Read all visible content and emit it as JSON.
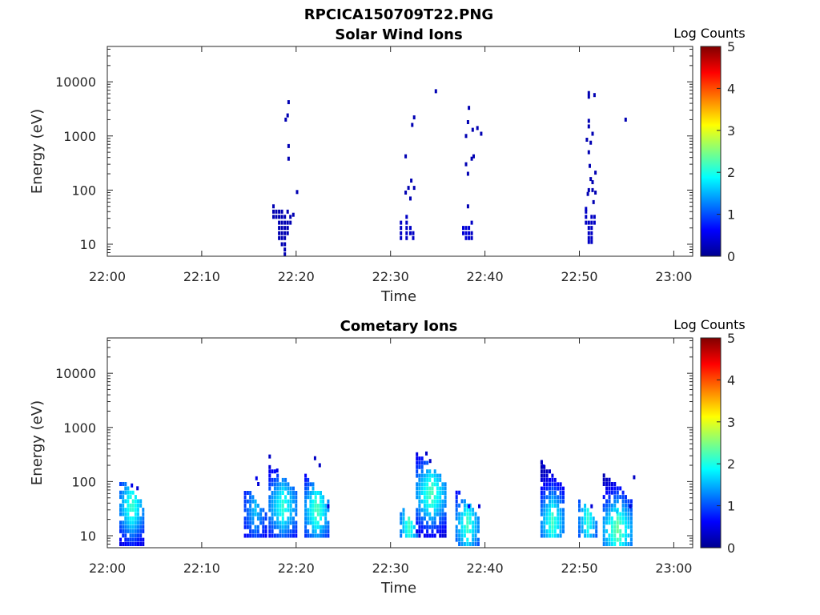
{
  "figure": {
    "title": "RPCICA150709T22.PNG"
  },
  "colormap": [
    "#00008f",
    "#0000ff",
    "#0080ff",
    "#00ffff",
    "#80ff80",
    "#ffff00",
    "#ff8000",
    "#ff0000",
    "#800000"
  ],
  "chart_data": [
    {
      "type": "heatmap",
      "title": "Solar Wind Ions",
      "xlabel": "Time",
      "ylabel": "Energy (eV)",
      "x_ticks": [
        "22:00",
        "22:10",
        "22:20",
        "22:30",
        "22:40",
        "22:50",
        "23:00"
      ],
      "x_tick_minutes": [
        0,
        10,
        20,
        30,
        40,
        50,
        60
      ],
      "xlim_minutes": [
        0,
        62
      ],
      "y_scale": "log",
      "ylim": [
        6,
        45000
      ],
      "y_ticks": [
        "10",
        "100",
        "1000",
        "10000"
      ],
      "y_tick_values": [
        10,
        100,
        1000,
        10000
      ],
      "colorbar": {
        "label": "Log Counts",
        "range": [
          0,
          5
        ],
        "ticks": [
          "0",
          "1",
          "2",
          "3",
          "4",
          "5"
        ]
      },
      "points": [
        [
          17.6,
          50,
          0.2
        ],
        [
          17.6,
          40,
          0.2
        ],
        [
          17.6,
          32,
          0.2
        ],
        [
          17.9,
          40,
          0.2
        ],
        [
          17.9,
          32,
          0.2
        ],
        [
          18.2,
          40,
          0.2
        ],
        [
          18.2,
          32,
          0.2
        ],
        [
          18.2,
          25,
          0.2
        ],
        [
          18.2,
          20,
          0.2
        ],
        [
          18.2,
          16,
          0.2
        ],
        [
          18.2,
          13,
          0.2
        ],
        [
          18.5,
          40,
          0.2
        ],
        [
          18.5,
          32,
          0.2
        ],
        [
          18.5,
          25,
          0.2
        ],
        [
          18.5,
          20,
          0.2
        ],
        [
          18.5,
          16,
          0.2
        ],
        [
          18.5,
          13,
          0.2
        ],
        [
          18.5,
          10,
          0.2
        ],
        [
          18.8,
          32,
          0.2
        ],
        [
          18.8,
          25,
          0.2
        ],
        [
          18.8,
          20,
          0.2
        ],
        [
          18.8,
          16,
          0.2
        ],
        [
          18.8,
          13,
          0.2
        ],
        [
          18.8,
          10,
          0.2
        ],
        [
          18.8,
          8,
          0.2
        ],
        [
          18.8,
          6.5,
          0.2
        ],
        [
          19.1,
          40,
          0.2
        ],
        [
          19.1,
          25,
          0.2
        ],
        [
          19.1,
          20,
          0.2
        ],
        [
          19.1,
          16,
          0.2
        ],
        [
          19.4,
          32,
          0.2
        ],
        [
          19.4,
          25,
          0.2
        ],
        [
          19.7,
          35,
          0.2
        ],
        [
          20.1,
          92,
          0.2
        ],
        [
          19.2,
          4200,
          0.2
        ],
        [
          19.1,
          2400,
          0.2
        ],
        [
          18.9,
          2000,
          0.2
        ],
        [
          19.2,
          650,
          0.2
        ],
        [
          19.2,
          380,
          0.2
        ],
        [
          31.1,
          25,
          0.3
        ],
        [
          31.1,
          20,
          0.3
        ],
        [
          31.1,
          16,
          0.3
        ],
        [
          31.1,
          13,
          0.3
        ],
        [
          31.7,
          32,
          0.3
        ],
        [
          31.7,
          25,
          0.3
        ],
        [
          31.7,
          20,
          0.3
        ],
        [
          31.7,
          16,
          0.3
        ],
        [
          31.7,
          13,
          0.3
        ],
        [
          32.1,
          20,
          0.3
        ],
        [
          32.1,
          16,
          0.3
        ],
        [
          32.4,
          16,
          0.3
        ],
        [
          32.4,
          13,
          0.3
        ],
        [
          31.6,
          420,
          0.2
        ],
        [
          31.6,
          90,
          0.2
        ],
        [
          31.9,
          110,
          0.2
        ],
        [
          32.2,
          150,
          0.2
        ],
        [
          32.5,
          110,
          0.2
        ],
        [
          32.1,
          70,
          0.2
        ],
        [
          32.5,
          2200,
          0.2
        ],
        [
          32.3,
          1600,
          0.2
        ],
        [
          34.8,
          6700,
          0.2
        ],
        [
          37.7,
          20,
          0.4
        ],
        [
          37.7,
          16,
          0.4
        ],
        [
          38.0,
          20,
          0.4
        ],
        [
          38.0,
          16,
          0.4
        ],
        [
          38.0,
          13,
          0.4
        ],
        [
          38.3,
          20,
          0.4
        ],
        [
          38.3,
          16,
          0.4
        ],
        [
          38.3,
          13,
          0.4
        ],
        [
          38.6,
          25,
          0.3
        ],
        [
          38.6,
          16,
          0.3
        ],
        [
          38.6,
          13,
          0.3
        ],
        [
          38.2,
          50,
          0.2
        ],
        [
          38.3,
          3300,
          0.2
        ],
        [
          38.2,
          1800,
          0.2
        ],
        [
          38.7,
          1300,
          0.2
        ],
        [
          38.0,
          1000,
          0.2
        ],
        [
          39.2,
          1400,
          0.2
        ],
        [
          39.6,
          1100,
          0.2
        ],
        [
          38.8,
          420,
          0.2
        ],
        [
          38.6,
          380,
          0.2
        ],
        [
          38.0,
          300,
          0.2
        ],
        [
          38.2,
          200,
          0.2
        ],
        [
          50.7,
          45,
          0.3
        ],
        [
          50.7,
          40,
          0.3
        ],
        [
          50.7,
          32,
          0.3
        ],
        [
          50.7,
          25,
          0.3
        ],
        [
          51.0,
          25,
          0.3
        ],
        [
          51.0,
          20,
          0.3
        ],
        [
          51.0,
          16,
          0.3
        ],
        [
          51.0,
          13,
          0.3
        ],
        [
          51.0,
          11,
          0.3
        ],
        [
          51.3,
          32,
          0.3
        ],
        [
          51.3,
          25,
          0.3
        ],
        [
          51.3,
          20,
          0.3
        ],
        [
          51.3,
          16,
          0.3
        ],
        [
          51.3,
          13,
          0.3
        ],
        [
          51.3,
          11,
          0.3
        ],
        [
          51.6,
          32,
          0.3
        ],
        [
          51.6,
          25,
          0.3
        ],
        [
          51.0,
          6200,
          0.2
        ],
        [
          51.0,
          5300,
          0.2
        ],
        [
          51.6,
          5700,
          0.2
        ],
        [
          51.0,
          1900,
          0.2
        ],
        [
          51.0,
          1500,
          0.2
        ],
        [
          51.4,
          1100,
          0.2
        ],
        [
          50.8,
          850,
          0.2
        ],
        [
          51.2,
          750,
          0.2
        ],
        [
          51.0,
          500,
          0.2
        ],
        [
          51.1,
          280,
          0.2
        ],
        [
          51.7,
          210,
          0.2
        ],
        [
          51.2,
          160,
          0.2
        ],
        [
          51.4,
          140,
          0.2
        ],
        [
          51.0,
          100,
          0.2
        ],
        [
          51.4,
          100,
          0.2
        ],
        [
          51.7,
          90,
          0.2
        ],
        [
          50.9,
          85,
          0.2
        ],
        [
          51.5,
          60,
          0.2
        ],
        [
          54.9,
          2000,
          0.2
        ]
      ]
    },
    {
      "type": "heatmap",
      "title": "Cometary Ions",
      "xlabel": "Time",
      "ylabel": "Energy (eV)",
      "x_ticks": [
        "22:00",
        "22:10",
        "22:20",
        "22:30",
        "22:40",
        "22:50",
        "23:00"
      ],
      "x_tick_minutes": [
        0,
        10,
        20,
        30,
        40,
        50,
        60
      ],
      "xlim_minutes": [
        0,
        62
      ],
      "y_scale": "log",
      "ylim": [
        6,
        45000
      ],
      "y_ticks": [
        "10",
        "100",
        "1000",
        "10000"
      ],
      "y_tick_values": [
        10,
        100,
        1000,
        10000
      ],
      "colorbar": {
        "label": "Log Counts",
        "range": [
          0,
          5
        ],
        "ticks": [
          "0",
          "1",
          "2",
          "3",
          "4",
          "5"
        ]
      },
      "clusters": [
        {
          "x_start": 1.4,
          "x_end": 3.8,
          "e_high": 115,
          "e_low": 7,
          "peak_e": 35,
          "peak_level": 2.2,
          "extra": [
            [
              2.6,
              85,
              0.5
            ],
            [
              3.2,
              75,
              0.4
            ]
          ]
        },
        {
          "x_start": 14.6,
          "x_end": 16.8,
          "e_high": 80,
          "e_low": 10,
          "peak_e": 30,
          "peak_level": 1.6,
          "extra": [
            [
              15.8,
              115,
              0.5
            ],
            [
              16.0,
              90,
              0.4
            ]
          ]
        },
        {
          "x_start": 17.2,
          "x_end": 20.0,
          "e_high": 200,
          "e_low": 10,
          "peak_e": 35,
          "peak_level": 2.1,
          "extra": [
            [
              17.2,
              290,
              0.3
            ],
            [
              18.0,
              160,
              0.5
            ]
          ]
        },
        {
          "x_start": 21.0,
          "x_end": 23.4,
          "e_high": 130,
          "e_low": 10,
          "peak_e": 30,
          "peak_level": 2.3,
          "extra": [
            [
              22.0,
              270,
              0.3
            ],
            [
              22.5,
              200,
              0.3
            ],
            [
              23.4,
              35,
              0.4
            ]
          ]
        },
        {
          "x_start": 31.1,
          "x_end": 32.8,
          "e_high": 35,
          "e_low": 10,
          "peak_e": 16,
          "peak_level": 2.2,
          "extra": []
        },
        {
          "x_start": 32.8,
          "x_end": 35.8,
          "e_high": 320,
          "e_low": 10,
          "peak_e": 60,
          "peak_level": 2.3,
          "extra": [
            [
              33.8,
              330,
              0.3
            ],
            [
              34.2,
              240,
              0.3
            ]
          ]
        },
        {
          "x_start": 37.0,
          "x_end": 39.3,
          "e_high": 70,
          "e_low": 7,
          "peak_e": 16,
          "peak_level": 2.2,
          "extra": [
            [
              38.3,
              35,
              0.6
            ],
            [
              39.4,
              35,
              0.4
            ]
          ]
        },
        {
          "x_start": 46.0,
          "x_end": 48.3,
          "e_high": 230,
          "e_low": 10,
          "peak_e": 18,
          "peak_level": 2.2,
          "extra": [
            [
              46.0,
              230,
              0.3
            ],
            [
              46.2,
              190,
              0.4
            ]
          ]
        },
        {
          "x_start": 50.0,
          "x_end": 51.8,
          "e_high": 50,
          "e_low": 10,
          "peak_e": 20,
          "peak_level": 2.1,
          "extra": [
            [
              51.3,
              35,
              0.4
            ]
          ]
        },
        {
          "x_start": 52.6,
          "x_end": 55.5,
          "e_high": 140,
          "e_low": 7,
          "peak_e": 13,
          "peak_level": 2.4,
          "extra": [
            [
              54.0,
              28,
              1.6
            ],
            [
              55.4,
              35,
              0.4
            ],
            [
              55.8,
              120,
              0.3
            ]
          ]
        }
      ]
    }
  ]
}
